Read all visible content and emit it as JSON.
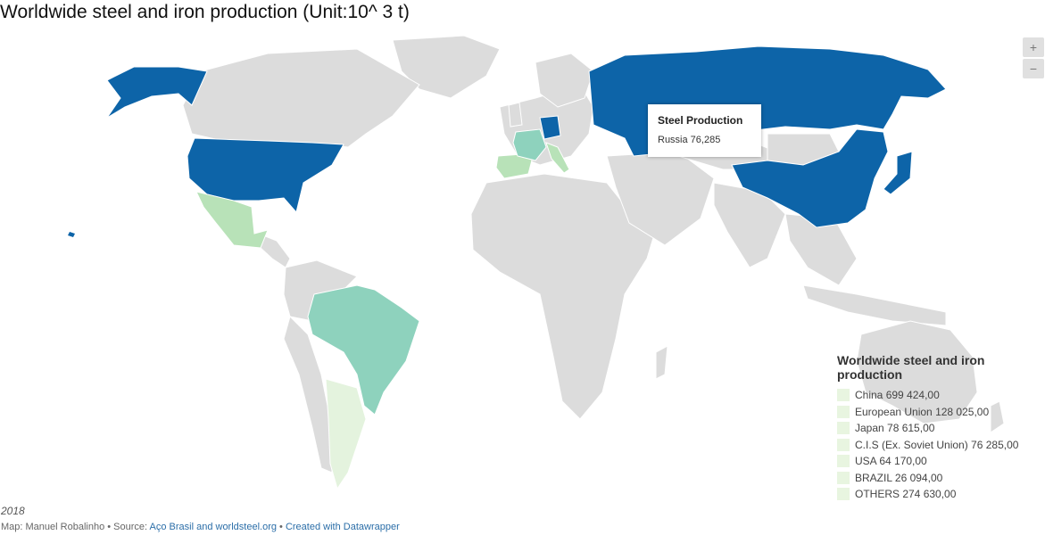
{
  "title": "Worldwide steel and iron production (Unit:10^ 3 t)",
  "zoom": {
    "in_label": "+",
    "out_label": "−"
  },
  "tooltip": {
    "title": "Steel Production",
    "text": "Russia 76,285"
  },
  "legend": {
    "title": "Worldwide steel and iron production",
    "items": [
      "China 699 424,00",
      "European Union 128 025,00",
      "Japan 78 615,00",
      "C.I.S (Ex. Soviet Union) 76 285,00",
      "USA 64 170,00",
      "BRAZIL 26 094,00",
      "OTHERS 274 630,00"
    ]
  },
  "colors": {
    "dark_blue": "#0d64a8",
    "teal": "#8ed2bd",
    "light_green": "#b8e2b8",
    "pale_green": "#e4f3de",
    "land": "#dcdcdc"
  },
  "map": {
    "highlighted": [
      {
        "name": "United States",
        "color": "#0d64a8"
      },
      {
        "name": "Alaska",
        "color": "#0d64a8"
      },
      {
        "name": "Russia",
        "color": "#0d64a8"
      },
      {
        "name": "China",
        "color": "#0d64a8"
      },
      {
        "name": "Japan",
        "color": "#0d64a8"
      },
      {
        "name": "Germany",
        "color": "#0d64a8"
      },
      {
        "name": "Brazil",
        "color": "#8ed2bd"
      },
      {
        "name": "France",
        "color": "#8ed2bd"
      },
      {
        "name": "Spain",
        "color": "#b8e2b8"
      },
      {
        "name": "Italy",
        "color": "#b8e2b8"
      },
      {
        "name": "Mexico",
        "color": "#b8e2b8"
      },
      {
        "name": "Argentina",
        "color": "#e4f3de"
      }
    ]
  },
  "footer": {
    "year": "2018",
    "prefix": "Map: Manuel Robalinho • Source: ",
    "source": "Aço Brasil and worldsteel.org",
    "sep": " • ",
    "credit": "Created with Datawrapper"
  }
}
